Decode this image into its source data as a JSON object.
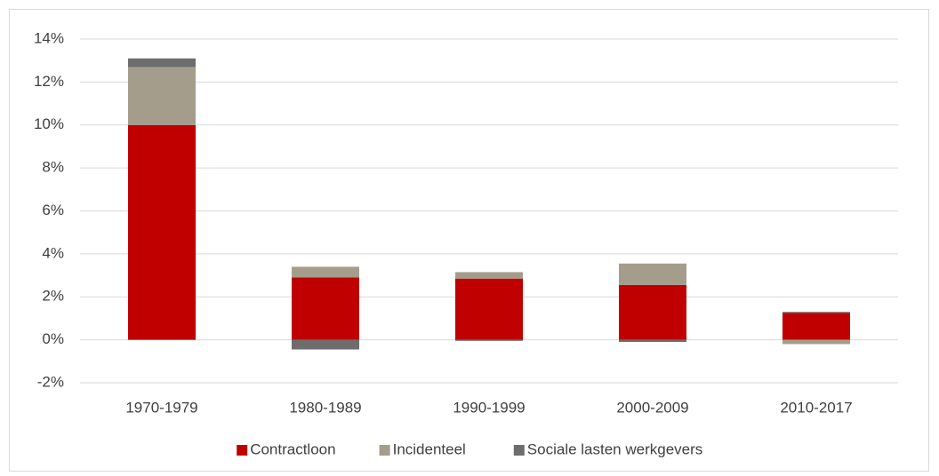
{
  "chart_data": {
    "type": "stacked_bar",
    "categories": [
      "1970-1979",
      "1980-1989",
      "1990-1999",
      "2000-2009",
      "2010-2017"
    ],
    "series": [
      {
        "name": "Contractloon",
        "color": "#c00000",
        "values": [
          10.0,
          2.9,
          2.85,
          2.55,
          1.25
        ]
      },
      {
        "name": "Incidenteel",
        "color": "#a59d8b",
        "values": [
          2.7,
          0.5,
          0.3,
          1.0,
          -0.2
        ]
      },
      {
        "name": "Sociale lasten werkgevers",
        "color": "#6d6d6d",
        "values": [
          0.4,
          -0.45,
          -0.05,
          -0.1,
          0.05
        ]
      }
    ],
    "ylim": [
      -2,
      14
    ],
    "yticks": [
      {
        "value": -2,
        "label": "-2%"
      },
      {
        "value": 0,
        "label": "0%"
      },
      {
        "value": 2,
        "label": "2%"
      },
      {
        "value": 4,
        "label": "4%"
      },
      {
        "value": 6,
        "label": "6%"
      },
      {
        "value": 8,
        "label": "8%"
      },
      {
        "value": 10,
        "label": "10%"
      },
      {
        "value": 12,
        "label": "12%"
      },
      {
        "value": 14,
        "label": "14%"
      }
    ],
    "grid": true,
    "legend": "bottom"
  }
}
